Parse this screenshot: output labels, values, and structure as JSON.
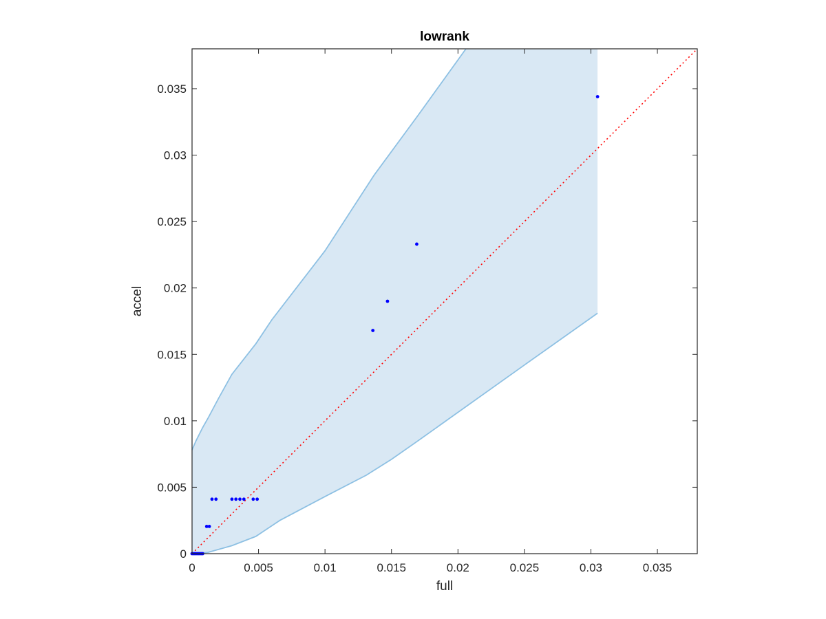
{
  "chart_data": {
    "type": "scatter",
    "title": "lowrank",
    "xlabel": "full",
    "ylabel": "accel",
    "xlim": [
      0,
      0.038
    ],
    "ylim": [
      0,
      0.038
    ],
    "grid": false,
    "legend": "none",
    "x_ticks": [
      0,
      0.005,
      0.01,
      0.015,
      0.02,
      0.025,
      0.03,
      0.035
    ],
    "x_tick_labels": [
      "0",
      "0.005",
      "0.01",
      "0.015",
      "0.02",
      "0.025",
      "0.03",
      "0.035"
    ],
    "y_ticks": [
      0,
      0.005,
      0.01,
      0.015,
      0.02,
      0.025,
      0.03,
      0.035
    ],
    "y_tick_labels": [
      "0",
      "0.005",
      "0.01",
      "0.015",
      "0.02",
      "0.025",
      "0.03",
      "0.035"
    ],
    "points": [
      {
        "x": 0,
        "y": 0
      },
      {
        "x": 0.0001,
        "y": 0
      },
      {
        "x": 0.0002,
        "y": 0
      },
      {
        "x": 0.0003,
        "y": 0
      },
      {
        "x": 0.0004,
        "y": 0
      },
      {
        "x": 0.0005,
        "y": 0
      },
      {
        "x": 0.0006,
        "y": 0
      },
      {
        "x": 0.0007,
        "y": 0
      },
      {
        "x": 0.0008,
        "y": 0
      },
      {
        "x": 0.0011,
        "y": 0.00205
      },
      {
        "x": 0.0013,
        "y": 0.00205
      },
      {
        "x": 0.0015,
        "y": 0.0041
      },
      {
        "x": 0.0018,
        "y": 0.0041
      },
      {
        "x": 0.003,
        "y": 0.0041
      },
      {
        "x": 0.0033,
        "y": 0.0041
      },
      {
        "x": 0.0036,
        "y": 0.0041
      },
      {
        "x": 0.0039,
        "y": 0.0041
      },
      {
        "x": 0.0046,
        "y": 0.0041
      },
      {
        "x": 0.0049,
        "y": 0.0041
      },
      {
        "x": 0.0136,
        "y": 0.0168
      },
      {
        "x": 0.0147,
        "y": 0.019
      },
      {
        "x": 0.0169,
        "y": 0.0233
      },
      {
        "x": 0.0305,
        "y": 0.0344
      }
    ],
    "band": {
      "upper": [
        {
          "x": 0,
          "y": 0.0078
        },
        {
          "x": 0.0003,
          "y": 0.0085
        },
        {
          "x": 0.0008,
          "y": 0.0095
        },
        {
          "x": 0.0012,
          "y": 0.0102
        },
        {
          "x": 0.002,
          "y": 0.0117
        },
        {
          "x": 0.003,
          "y": 0.0135
        },
        {
          "x": 0.0048,
          "y": 0.0158
        },
        {
          "x": 0.006,
          "y": 0.0176
        },
        {
          "x": 0.01,
          "y": 0.0228
        },
        {
          "x": 0.0137,
          "y": 0.0285
        },
        {
          "x": 0.017,
          "y": 0.033
        },
        {
          "x": 0.0206,
          "y": 0.038
        }
      ],
      "top_right": [
        {
          "x": 0.0305,
          "y": 0.038
        }
      ],
      "lower": [
        {
          "x": 0.0305,
          "y": 0.0181
        },
        {
          "x": 0.025,
          "y": 0.0142
        },
        {
          "x": 0.017,
          "y": 0.0085
        },
        {
          "x": 0.015,
          "y": 0.0071
        },
        {
          "x": 0.0131,
          "y": 0.0059
        },
        {
          "x": 0.01,
          "y": 0.0043
        },
        {
          "x": 0.0066,
          "y": 0.0025
        },
        {
          "x": 0.0048,
          "y": 0.0013
        },
        {
          "x": 0.003,
          "y": 0.0006
        },
        {
          "x": 0.0012,
          "y": 0.0001
        },
        {
          "x": 0,
          "y": 0
        }
      ]
    },
    "reference_line": {
      "from": [
        0,
        0
      ],
      "to": [
        0.038,
        0.038
      ],
      "style": "dotted"
    },
    "colors": {
      "points": "#0000ff",
      "band_fill": "#d9e8f4",
      "band_edge": "#8dc0e3",
      "reference": "#ff0000",
      "axes": "#262626"
    }
  }
}
